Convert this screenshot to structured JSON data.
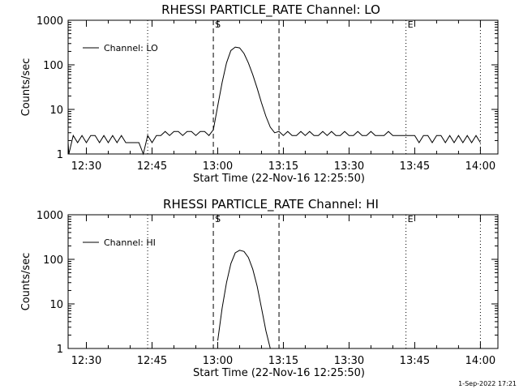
{
  "footer": {
    "timestamp": "1-Sep-2022 17:21"
  },
  "chart_data": [
    {
      "type": "line",
      "title": "RHESSI PARTICLE_RATE Channel: LO",
      "xlabel": "Start Time (22-Nov-16 12:25:50)",
      "ylabel": "Counts/sec",
      "yscale": "log",
      "xlim": [
        "12:25:50",
        "14:04:00"
      ],
      "ylim": [
        1,
        1000
      ],
      "x_ticks": [
        "12:30",
        "12:45",
        "13:00",
        "13:15",
        "13:30",
        "13:45",
        "14:00"
      ],
      "y_ticks": [
        "1",
        "10",
        "100",
        "1000"
      ],
      "legend": {
        "position": "top-left",
        "entries": [
          "Channel: LO"
        ]
      },
      "markers": [
        {
          "time": "12:44",
          "style": "dotted",
          "label": ""
        },
        {
          "time": "12:59",
          "style": "dashed",
          "label": "S"
        },
        {
          "time": "13:14",
          "style": "dashed",
          "label": ""
        },
        {
          "time": "13:43",
          "style": "dotted",
          "label": "E"
        },
        {
          "time": "14:00",
          "style": "dotted",
          "label": ""
        }
      ],
      "series": [
        {
          "name": "Channel: LO",
          "x": [
            "12:25:50",
            "12:26",
            "12:27",
            "12:28",
            "12:29",
            "12:30",
            "12:31",
            "12:32",
            "12:33",
            "12:34",
            "12:35",
            "12:36",
            "12:37",
            "12:38",
            "12:39",
            "12:40",
            "12:41",
            "12:42",
            "12:43",
            "12:44",
            "12:45",
            "12:46",
            "12:47",
            "12:48",
            "12:49",
            "12:50",
            "12:51",
            "12:52",
            "12:53",
            "12:54",
            "12:55",
            "12:56",
            "12:57",
            "12:58",
            "12:59",
            "13:00",
            "13:01",
            "13:02",
            "13:03",
            "13:04",
            "13:05",
            "13:06",
            "13:07",
            "13:08",
            "13:09",
            "13:10",
            "13:11",
            "13:12",
            "13:13",
            "13:14",
            "13:15",
            "13:16",
            "13:17",
            "13:18",
            "13:19",
            "13:20",
            "13:21",
            "13:22",
            "13:23",
            "13:24",
            "13:25",
            "13:26",
            "13:27",
            "13:28",
            "13:29",
            "13:30",
            "13:31",
            "13:32",
            "13:33",
            "13:34",
            "13:35",
            "13:36",
            "13:37",
            "13:38",
            "13:39",
            "13:40",
            "13:41",
            "13:42",
            "13:43",
            "13:44",
            "13:45",
            "13:46",
            "13:47",
            "13:48",
            "13:49",
            "13:50",
            "13:51",
            "13:52",
            "13:53",
            "13:54",
            "13:55",
            "13:56",
            "13:57",
            "13:58",
            "13:59",
            "14:00"
          ],
          "y": [
            1.8,
            1.0,
            2.6,
            1.8,
            2.6,
            1.8,
            2.6,
            2.6,
            1.8,
            2.6,
            1.8,
            2.6,
            1.8,
            2.6,
            1.8,
            1.8,
            1.8,
            1.8,
            1.0,
            2.6,
            1.8,
            2.6,
            2.6,
            3.2,
            2.6,
            3.2,
            3.2,
            2.6,
            3.2,
            3.2,
            2.6,
            3.2,
            3.2,
            2.6,
            3.5,
            12,
            40,
            110,
            210,
            250,
            240,
            180,
            110,
            60,
            30,
            14,
            7,
            4,
            3,
            3.2,
            2.6,
            3.2,
            2.6,
            2.6,
            3.2,
            2.6,
            3.2,
            2.6,
            2.6,
            3.2,
            2.6,
            3.2,
            2.6,
            2.6,
            3.2,
            2.6,
            2.6,
            3.2,
            2.6,
            2.6,
            3.2,
            2.6,
            2.6,
            2.6,
            3.2,
            2.6,
            2.6,
            2.6,
            2.6,
            2.6,
            2.6,
            1.8,
            2.6,
            2.6,
            1.8,
            2.6,
            2.6,
            1.8,
            2.6,
            1.8,
            2.6,
            1.8,
            2.6,
            1.8,
            2.6,
            1.8
          ]
        }
      ]
    },
    {
      "type": "line",
      "title": "RHESSI PARTICLE_RATE Channel: HI",
      "xlabel": "Start Time (22-Nov-16 12:25:50)",
      "ylabel": "Counts/sec",
      "yscale": "log",
      "xlim": [
        "12:25:50",
        "14:04:00"
      ],
      "ylim": [
        1,
        1000
      ],
      "x_ticks": [
        "12:30",
        "12:45",
        "13:00",
        "13:15",
        "13:30",
        "13:45",
        "14:00"
      ],
      "y_ticks": [
        "1",
        "10",
        "100",
        "1000"
      ],
      "legend": {
        "position": "top-left",
        "entries": [
          "Channel: HI"
        ]
      },
      "markers": [
        {
          "time": "12:44",
          "style": "dotted",
          "label": ""
        },
        {
          "time": "12:59",
          "style": "dashed",
          "label": "S"
        },
        {
          "time": "13:14",
          "style": "dashed",
          "label": ""
        },
        {
          "time": "13:43",
          "style": "dotted",
          "label": "E"
        },
        {
          "time": "14:00",
          "style": "dotted",
          "label": ""
        }
      ],
      "series": [
        {
          "name": "Channel: HI",
          "x": [
            "13:00",
            "13:01",
            "13:02",
            "13:03",
            "13:04",
            "13:05",
            "13:06",
            "13:07",
            "13:08",
            "13:09",
            "13:10",
            "13:11",
            "13:12"
          ],
          "y": [
            1.5,
            8,
            30,
            80,
            140,
            160,
            150,
            110,
            60,
            25,
            8,
            2.5,
            1.0
          ]
        }
      ]
    }
  ]
}
